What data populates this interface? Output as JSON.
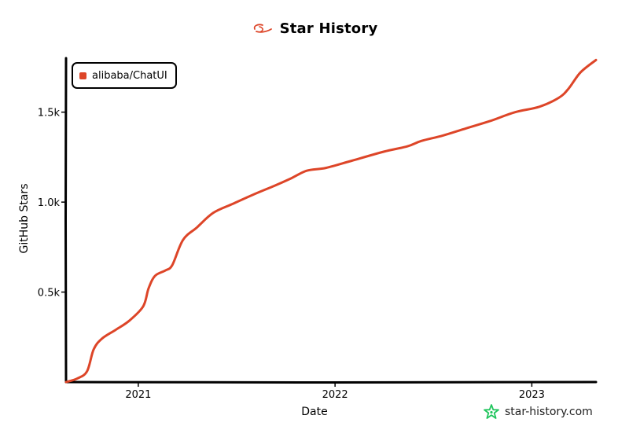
{
  "header": {
    "title": "Star History"
  },
  "legend": {
    "label": "alibaba/ChatUI"
  },
  "watermark": {
    "text": "star-history.com"
  },
  "colors": {
    "series": "#dd4528",
    "axis": "#000000",
    "logo_star": "#22c55e",
    "title_logo": "#dd4528"
  },
  "icons": {
    "title_logo": "alibaba-logo-icon",
    "watermark_logo": "star-history-logo-icon"
  },
  "chart_data": {
    "type": "line",
    "title": "Star History",
    "xlabel": "Date",
    "ylabel": "GitHub Stars",
    "x_ticks": [
      "2021",
      "2022",
      "2023"
    ],
    "y_ticks": [
      "0.5k",
      "1.0k",
      "1.5k"
    ],
    "x_tick_values": [
      "2021-01-01",
      "2022-01-01",
      "2023-01-01"
    ],
    "y_tick_values": [
      500,
      1000,
      1500
    ],
    "xlim": [
      "2020-08-20",
      "2023-04-30"
    ],
    "ylim": [
      0,
      1800
    ],
    "grid": false,
    "legend_position": "top-left",
    "series": [
      {
        "name": "alibaba/ChatUI",
        "color": "#dd4528",
        "points": [
          {
            "x": "2020-08-20",
            "y": 0
          },
          {
            "x": "2020-09-10",
            "y": 20
          },
          {
            "x": "2020-09-28",
            "y": 60
          },
          {
            "x": "2020-10-10",
            "y": 180
          },
          {
            "x": "2020-10-25",
            "y": 240
          },
          {
            "x": "2020-11-20",
            "y": 290
          },
          {
            "x": "2020-12-15",
            "y": 340
          },
          {
            "x": "2021-01-10",
            "y": 420
          },
          {
            "x": "2021-01-20",
            "y": 520
          },
          {
            "x": "2021-02-01",
            "y": 590
          },
          {
            "x": "2021-02-20",
            "y": 620
          },
          {
            "x": "2021-03-05",
            "y": 650
          },
          {
            "x": "2021-03-25",
            "y": 790
          },
          {
            "x": "2021-04-20",
            "y": 860
          },
          {
            "x": "2021-05-20",
            "y": 940
          },
          {
            "x": "2021-06-25",
            "y": 990
          },
          {
            "x": "2021-08-01",
            "y": 1040
          },
          {
            "x": "2021-09-10",
            "y": 1090
          },
          {
            "x": "2021-10-10",
            "y": 1130
          },
          {
            "x": "2021-11-10",
            "y": 1175
          },
          {
            "x": "2021-12-15",
            "y": 1190
          },
          {
            "x": "2022-02-01",
            "y": 1230
          },
          {
            "x": "2022-04-01",
            "y": 1280
          },
          {
            "x": "2022-05-15",
            "y": 1310
          },
          {
            "x": "2022-06-10",
            "y": 1340
          },
          {
            "x": "2022-07-20",
            "y": 1370
          },
          {
            "x": "2022-09-01",
            "y": 1410
          },
          {
            "x": "2022-10-15",
            "y": 1450
          },
          {
            "x": "2022-12-01",
            "y": 1500
          },
          {
            "x": "2023-01-15",
            "y": 1530
          },
          {
            "x": "2023-02-20",
            "y": 1580
          },
          {
            "x": "2023-03-10",
            "y": 1630
          },
          {
            "x": "2023-04-01",
            "y": 1720
          },
          {
            "x": "2023-04-30",
            "y": 1790
          }
        ]
      }
    ]
  }
}
